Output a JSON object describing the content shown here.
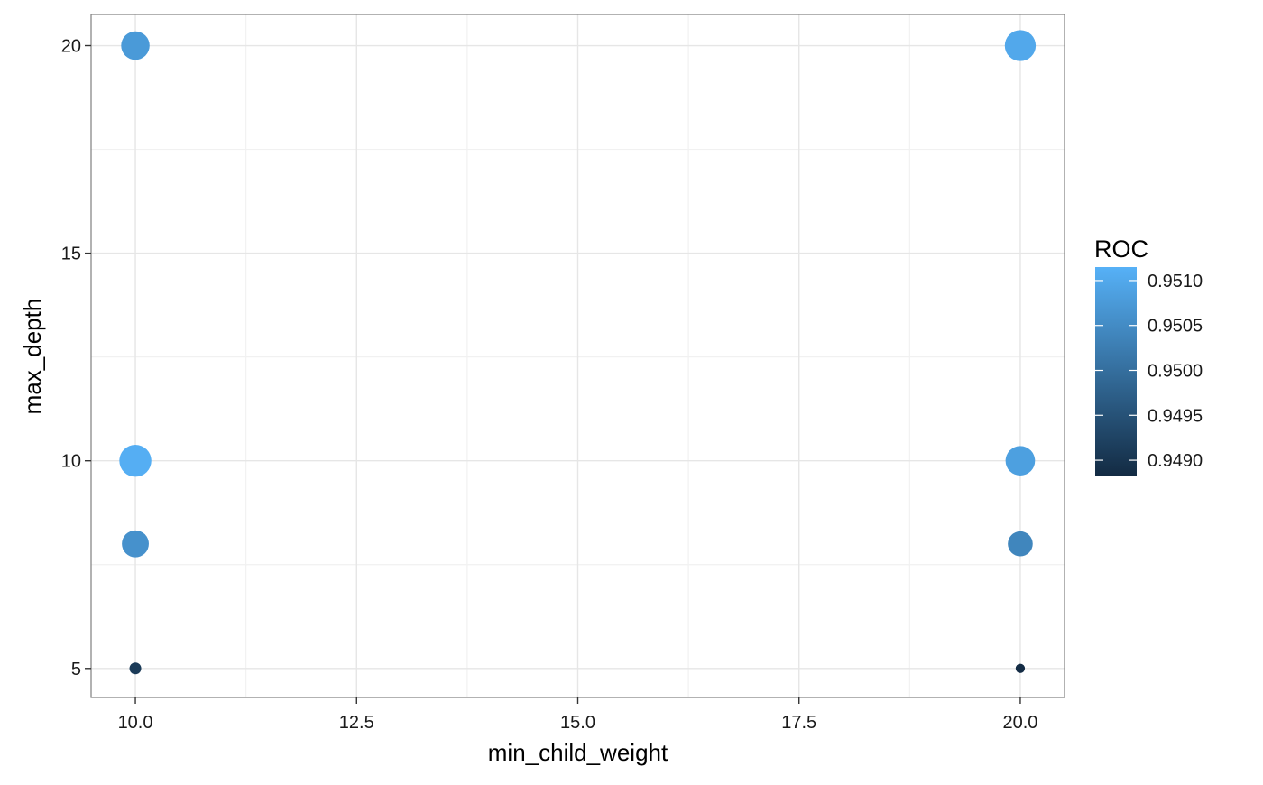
{
  "chart_data": {
    "type": "scatter",
    "title": "",
    "xlabel": "min_child_weight",
    "ylabel": "max_depth",
    "xlim": [
      9.5,
      20.5
    ],
    "ylim": [
      4.3,
      20.75
    ],
    "x_ticks": [
      10.0,
      12.5,
      15.0,
      17.5,
      20.0
    ],
    "x_tick_labels": [
      "10.0",
      "12.5",
      "15.0",
      "17.5",
      "20.0"
    ],
    "y_ticks": [
      5,
      10,
      15,
      20
    ],
    "y_tick_labels": [
      "5",
      "10",
      "15",
      "20"
    ],
    "grid": true,
    "legend": {
      "title": "ROC",
      "placement": "right",
      "range": [
        0.94883,
        0.95115
      ],
      "breaks": [
        0.949,
        0.9495,
        0.95,
        0.9505,
        0.951
      ],
      "labels": [
        "0.9490",
        "0.9495",
        "0.9500",
        "0.9505",
        "0.9510"
      ],
      "color_low": "#132B43",
      "color_high": "#56B1F7"
    },
    "size_encodes": "ROC",
    "points": [
      {
        "min_child_weight": 10,
        "max_depth": 20,
        "ROC": 0.95075
      },
      {
        "min_child_weight": 10,
        "max_depth": 10,
        "ROC": 0.9511
      },
      {
        "min_child_weight": 10,
        "max_depth": 8,
        "ROC": 0.9506
      },
      {
        "min_child_weight": 10,
        "max_depth": 5,
        "ROC": 0.9491
      },
      {
        "min_child_weight": 20,
        "max_depth": 20,
        "ROC": 0.951
      },
      {
        "min_child_weight": 20,
        "max_depth": 10,
        "ROC": 0.95085
      },
      {
        "min_child_weight": 20,
        "max_depth": 8,
        "ROC": 0.9504
      },
      {
        "min_child_weight": 20,
        "max_depth": 5,
        "ROC": 0.94885
      }
    ]
  }
}
